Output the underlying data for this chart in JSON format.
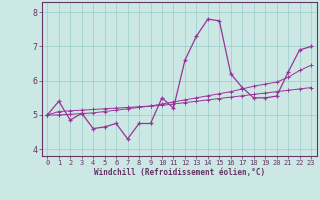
{
  "xlabel": "Windchill (Refroidissement éolien,°C)",
  "bg_color": "#cce8e4",
  "line_color": "#993399",
  "grid_color": "#99cccc",
  "axis_color": "#663366",
  "x_data": [
    0,
    1,
    2,
    3,
    4,
    5,
    6,
    7,
    8,
    9,
    10,
    11,
    12,
    13,
    14,
    15,
    16,
    17,
    18,
    19,
    20,
    21,
    22,
    23
  ],
  "y_main": [
    5.0,
    5.4,
    4.85,
    5.05,
    4.6,
    4.65,
    4.75,
    4.3,
    4.75,
    4.75,
    5.5,
    5.2,
    6.6,
    7.3,
    7.8,
    7.75,
    6.2,
    5.8,
    5.5,
    5.5,
    5.55,
    6.25,
    6.9,
    7.0
  ],
  "y_trend1": [
    5.0,
    5.1,
    5.12,
    5.14,
    5.16,
    5.18,
    5.2,
    5.22,
    5.24,
    5.26,
    5.28,
    5.32,
    5.36,
    5.4,
    5.44,
    5.48,
    5.52,
    5.56,
    5.6,
    5.64,
    5.68,
    5.72,
    5.76,
    5.8
  ],
  "y_trend2": [
    5.0,
    5.0,
    5.02,
    5.04,
    5.06,
    5.1,
    5.14,
    5.18,
    5.22,
    5.26,
    5.32,
    5.38,
    5.44,
    5.5,
    5.56,
    5.62,
    5.68,
    5.76,
    5.84,
    5.9,
    5.96,
    6.1,
    6.3,
    6.45
  ],
  "ylim": [
    3.8,
    8.3
  ],
  "xlim": [
    -0.5,
    23.5
  ],
  "yticks": [
    4,
    5,
    6,
    7,
    8
  ],
  "xticks": [
    0,
    1,
    2,
    3,
    4,
    5,
    6,
    7,
    8,
    9,
    10,
    11,
    12,
    13,
    14,
    15,
    16,
    17,
    18,
    19,
    20,
    21,
    22,
    23
  ]
}
